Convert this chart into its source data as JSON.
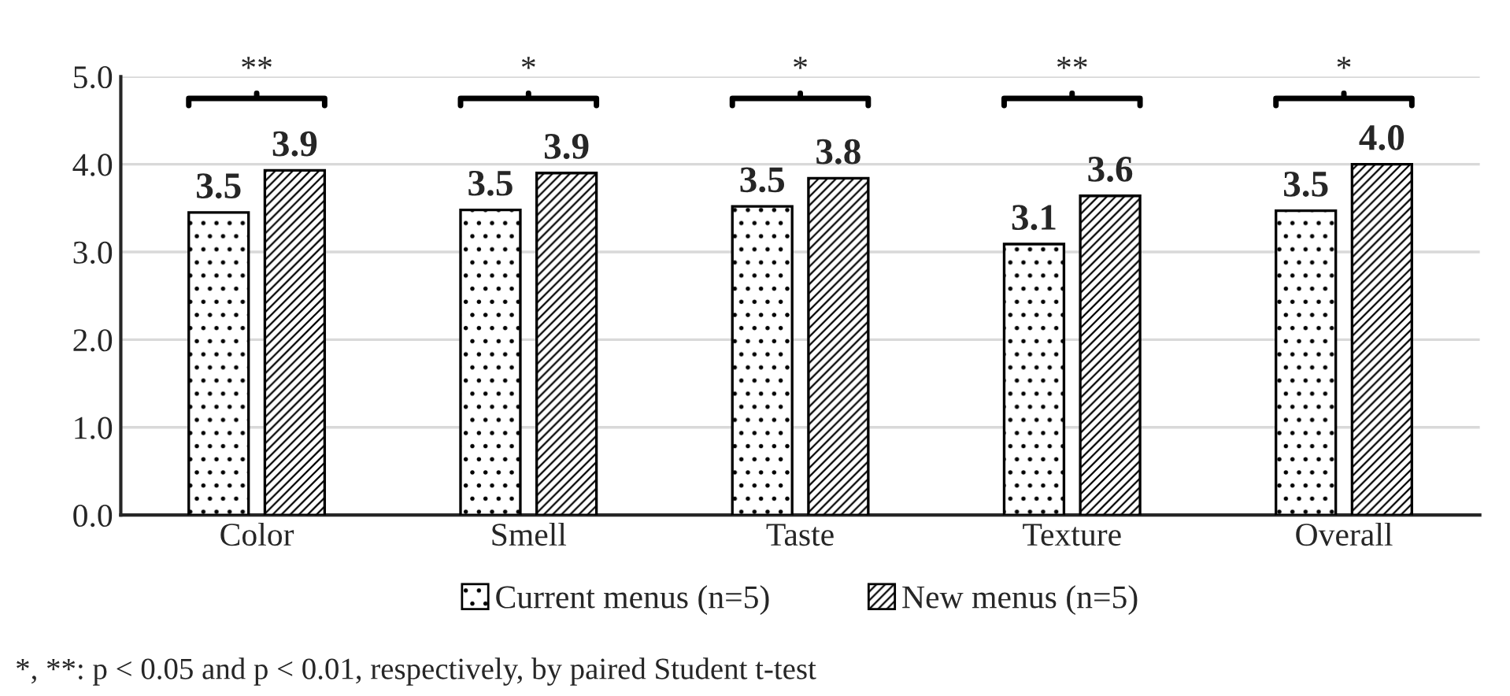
{
  "chart_data": {
    "type": "bar",
    "categories": [
      "Color",
      "Smell",
      "Taste",
      "Texture",
      "Overall"
    ],
    "series": [
      {
        "name": "Current menus (n=5)",
        "color": "#000000",
        "values": [
          3.45,
          3.48,
          3.52,
          3.09,
          3.47
        ],
        "value_labels": [
          "3.5",
          "3.5",
          "3.5",
          "3.1",
          "3.5"
        ]
      },
      {
        "name": "New menus (n=5)",
        "color": "#000000",
        "values": [
          3.93,
          3.9,
          3.84,
          3.64,
          4.0
        ],
        "value_labels": [
          "3.9",
          "3.9",
          "3.8",
          "3.6",
          "4.0"
        ]
      }
    ],
    "ylim": [
      0,
      5
    ],
    "yticks": [
      {
        "value": 0,
        "label": "0.0"
      },
      {
        "value": 1,
        "label": "1.0"
      },
      {
        "value": 2,
        "label": "2.0"
      },
      {
        "value": 3,
        "label": "3.0"
      },
      {
        "value": 4,
        "label": "4.0"
      },
      {
        "value": 5,
        "label": "5.0"
      }
    ],
    "grid": "y",
    "legend": "bottom",
    "annotations": [
      "**",
      "*",
      "*",
      "**",
      "*",
      "*, **: p < 0.05 and p < 0.01, respectively, by paired Student t-test"
    ]
  }
}
